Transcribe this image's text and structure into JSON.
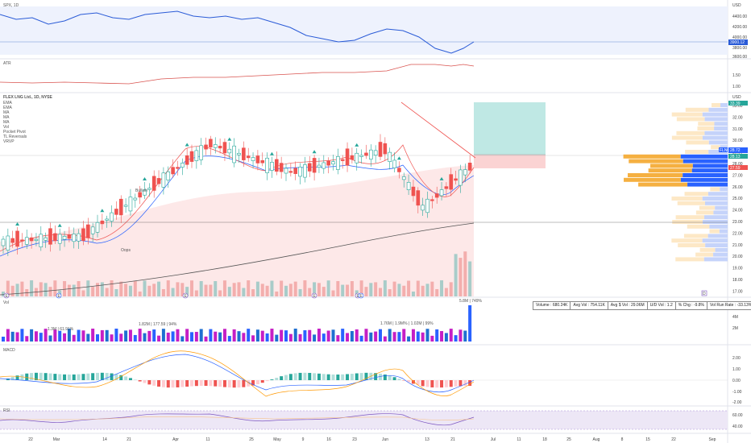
{
  "spx": {
    "title": "SPX, 1D",
    "currency": "USD",
    "price_tag": "3900.12",
    "ticks": [
      "4400.00",
      "4200.00",
      "4000.00",
      "3800.00",
      "3600.00"
    ]
  },
  "atr": {
    "title": "ATR",
    "ticks": [
      "1.50",
      "1.00"
    ]
  },
  "main": {
    "title": "FLEX LNG Ltd., 1D, NYSE",
    "indicators": [
      "EMA",
      "EMA",
      "MA",
      "MA",
      "MA",
      "Vol",
      "Pocket Pivot",
      "TL Reversals",
      "VRVP"
    ],
    "currency": "USD",
    "ticks": [
      "33.00",
      "32.00",
      "31.00",
      "30.00",
      "29.00",
      "28.00",
      "27.00",
      "26.00",
      "25.00",
      "24.00",
      "23.00",
      "22.00",
      "21.00",
      "20.00",
      "19.00",
      "18.00",
      "17.00"
    ],
    "tag_top": "33.39",
    "tag_flex": "FLNG",
    "tag_price": "28.72",
    "tag_b": "28.13",
    "tag_c": "27.59",
    "labels": [
      "Bullish",
      "Oops"
    ],
    "event_marks": [
      "E",
      "E",
      "E",
      "E",
      "E",
      "E",
      "D"
    ]
  },
  "vol": {
    "title": "Vol",
    "ticks": [
      "6M",
      "4M",
      "2M"
    ],
    "annots": [
      "1.3M | 61.91%",
      "1.82M | 177.59 | 94%",
      "1.76M | 1.9M% | 1.02M | 99%",
      "5.8M | 749%"
    ]
  },
  "stats": [
    "Volume : 680.24K",
    "Avg Vol : 754.11K",
    "Avg $ Vol : 29.06M",
    "U/D Vol : 1.2",
    "% Chg : -9.8%",
    "Vol Run Rate : -33.13%"
  ],
  "macd": {
    "title": "MACD",
    "ticks": [
      "2.00",
      "1.00",
      "0.00",
      "-1.00",
      "-2.00"
    ]
  },
  "rsi": {
    "title": "RSI",
    "ticks": [
      "60.00",
      "40.00"
    ]
  },
  "xaxis": [
    "22",
    "Mar",
    "14",
    "21",
    "Apr",
    "11",
    "25",
    "May",
    "9",
    "16",
    "23",
    "Jun",
    "13",
    "21",
    "Jul",
    "11",
    "18",
    "25",
    "Aug",
    "8",
    "15",
    "22",
    "Sep"
  ],
  "colors": {
    "up": "#26a69a",
    "down": "#ef5350",
    "spx": "#2a5bd7",
    "atr": "#d9534f",
    "macd": "#2962ff",
    "signal": "#ff9800",
    "rsi": "#7e57c2",
    "vp_up": "#2962ff",
    "vp_dn": "#f5b041"
  }
}
